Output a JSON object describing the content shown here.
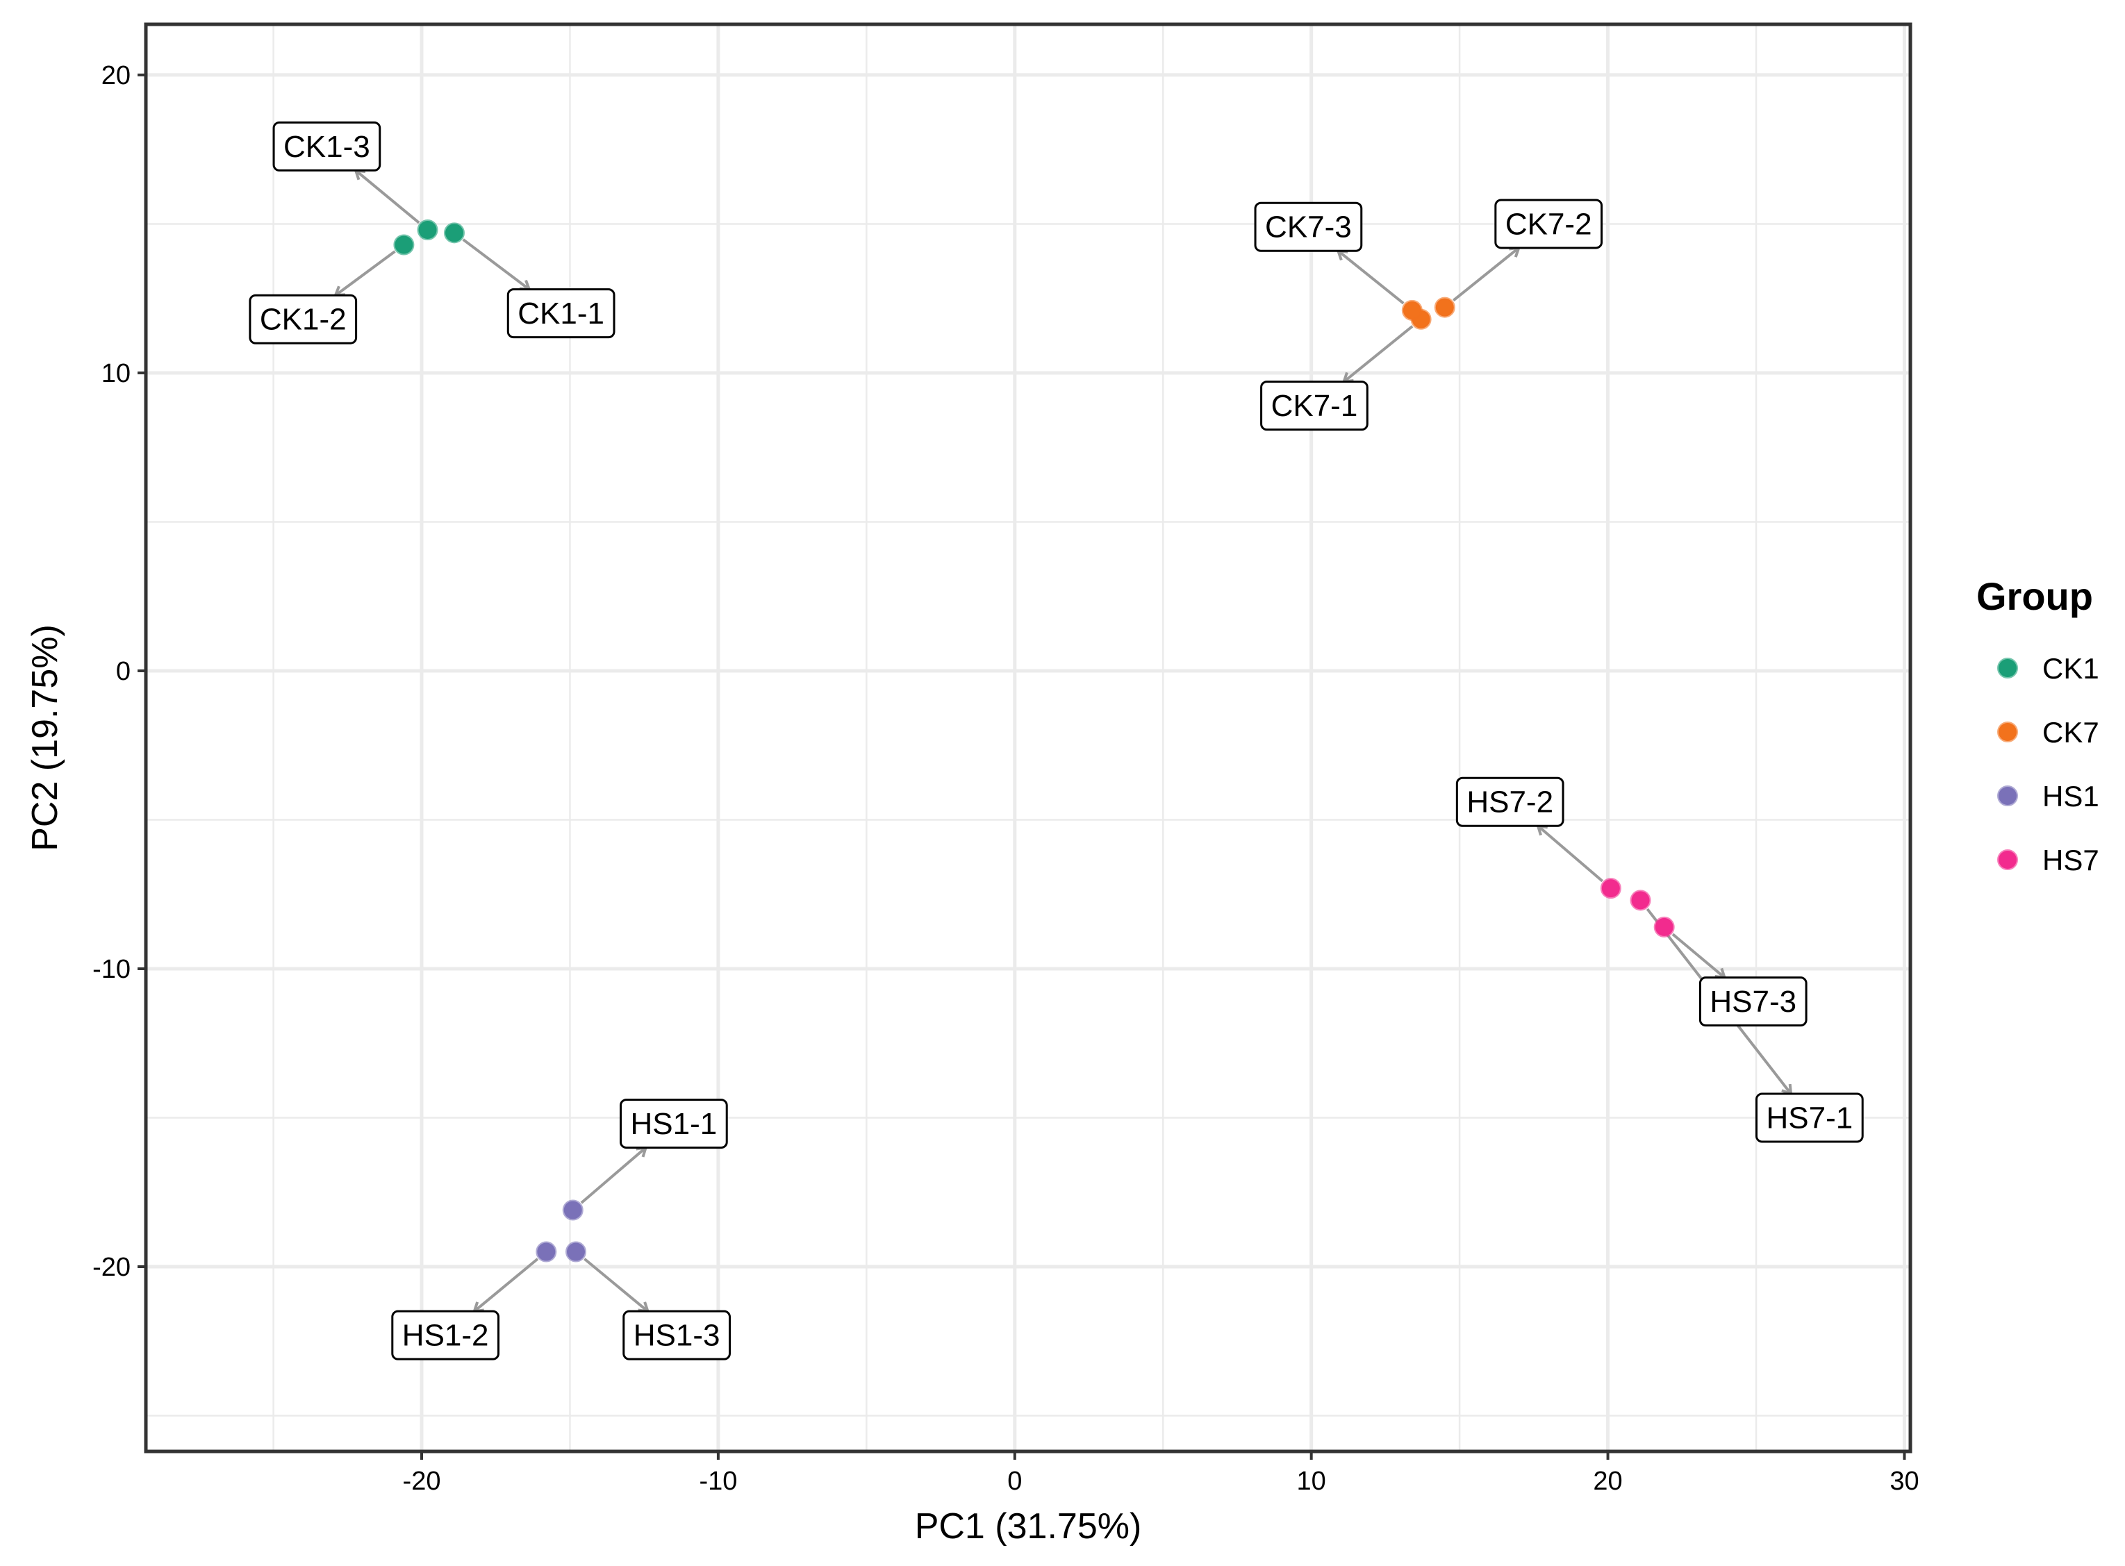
{
  "chart_data": {
    "type": "scatter",
    "xlabel": "PC1 (31.75%)",
    "ylabel": "PC2 (19.75%)",
    "xlim": [
      -29.3,
      30.2
    ],
    "ylim": [
      -26.2,
      21.7
    ],
    "x_ticks": [
      -20,
      -10,
      0,
      10,
      20,
      30
    ],
    "y_ticks": [
      20,
      10,
      0,
      -10,
      -20
    ],
    "x_tick_labels": [
      "-20",
      "-10",
      "0",
      "10",
      "20",
      "30"
    ],
    "y_tick_labels": [
      "20",
      "10",
      "0",
      "-10",
      "-20"
    ],
    "grid": true,
    "legend": {
      "title": "Group",
      "position": "right"
    },
    "series": [
      {
        "name": "CK1",
        "color": "#1b9e77",
        "points": [
          {
            "label": "CK1-1",
            "x": -18.9,
            "y": 14.7,
            "lx": -15.3,
            "ly": 12.0
          },
          {
            "label": "CK1-2",
            "x": -20.6,
            "y": 14.3,
            "lx": -24.0,
            "ly": 11.8
          },
          {
            "label": "CK1-3",
            "x": -19.8,
            "y": 14.8,
            "lx": -23.2,
            "ly": 17.6
          }
        ]
      },
      {
        "name": "CK7",
        "color": "#f2721c",
        "points": [
          {
            "label": "CK7-1",
            "x": 13.7,
            "y": 11.8,
            "lx": 10.1,
            "ly": 8.9
          },
          {
            "label": "CK7-2",
            "x": 14.5,
            "y": 12.2,
            "lx": 18.0,
            "ly": 15.0
          },
          {
            "label": "CK7-3",
            "x": 13.4,
            "y": 12.1,
            "lx": 9.9,
            "ly": 14.9
          }
        ]
      },
      {
        "name": "HS1",
        "color": "#7a71b8",
        "points": [
          {
            "label": "HS1-1",
            "x": -14.9,
            "y": -18.1,
            "lx": -11.5,
            "ly": -15.2
          },
          {
            "label": "HS1-2",
            "x": -15.8,
            "y": -19.5,
            "lx": -19.2,
            "ly": -22.3
          },
          {
            "label": "HS1-3",
            "x": -14.8,
            "y": -19.5,
            "lx": -11.4,
            "ly": -22.3
          }
        ]
      },
      {
        "name": "HS7",
        "color": "#f22b8e",
        "points": [
          {
            "label": "HS7-1",
            "x": 21.1,
            "y": -7.7,
            "lx": 26.8,
            "ly": -15.0
          },
          {
            "label": "HS7-2",
            "x": 20.1,
            "y": -7.3,
            "lx": 16.7,
            "ly": -4.4
          },
          {
            "label": "HS7-3",
            "x": 21.9,
            "y": -8.6,
            "lx": 24.9,
            "ly": -11.1
          }
        ]
      }
    ]
  }
}
